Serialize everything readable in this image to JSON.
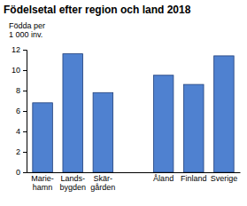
{
  "chart_data": {
    "type": "bar",
    "title": "Födelsetal efter region och land 2018",
    "y_label": "Födda per\n1 000 inv.",
    "categories": [
      "Marie-\nhamn",
      "Lands-\nbygden",
      "Skär-\ngården",
      null,
      "Åland",
      "Finland",
      "Sverige"
    ],
    "values": [
      6.8,
      11.6,
      7.8,
      null,
      9.5,
      8.6,
      11.4
    ],
    "color": "#4f81d0",
    "ylim": [
      0,
      12
    ],
    "yticks": [
      0,
      2,
      4,
      6,
      8,
      10,
      12
    ],
    "grid": false
  }
}
